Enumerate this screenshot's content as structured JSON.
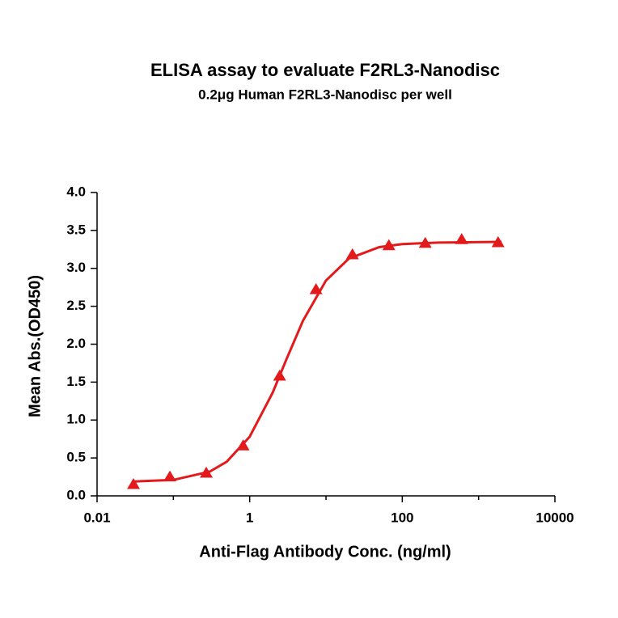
{
  "chart_data": {
    "type": "scatter",
    "title": "ELISA assay to evaluate F2RL3-Nanodisc",
    "subtitle": "0.2μg Human F2RL3-Nanodisc per well",
    "x_label": "Anti-Flag Antibody Conc. (ng/ml)",
    "y_label": "Mean Abs.(OD450)",
    "xscale": "log",
    "xlim": [
      0.01,
      10000
    ],
    "xticks": [
      0.01,
      1,
      100,
      10000
    ],
    "xminor": [
      0.1,
      10,
      1000
    ],
    "ylim": [
      0,
      4
    ],
    "yticks": [
      {
        "value": 0,
        "label": "0.0"
      },
      0.5,
      {
        "value": 1,
        "label": "1.0"
      },
      1.5,
      {
        "value": 2,
        "label": "2.0"
      },
      2.5,
      {
        "value": 3,
        "label": "3.0"
      },
      3.5,
      {
        "value": 4,
        "label": "4.0"
      }
    ],
    "grid": false,
    "series": [
      {
        "color": "#e31a1c",
        "marker": "triangle",
        "x": [
          0.03,
          0.09,
          0.27,
          0.82,
          2.47,
          7.4,
          22.2,
          66.7,
          200,
          600,
          1800
        ],
        "values": [
          0.15,
          0.25,
          0.3,
          0.66,
          1.58,
          2.72,
          3.18,
          3.3,
          3.33,
          3.38,
          3.34
        ]
      },
      {
        "color": "#e31a1c",
        "line": true,
        "x": [
          0.03,
          0.1,
          0.3,
          0.5,
          1,
          2,
          3,
          5,
          10,
          20,
          50,
          100,
          300,
          2000
        ],
        "values": [
          0.19,
          0.21,
          0.32,
          0.45,
          0.78,
          1.36,
          1.79,
          2.31,
          2.84,
          3.13,
          3.28,
          3.32,
          3.34,
          3.35
        ]
      }
    ]
  }
}
